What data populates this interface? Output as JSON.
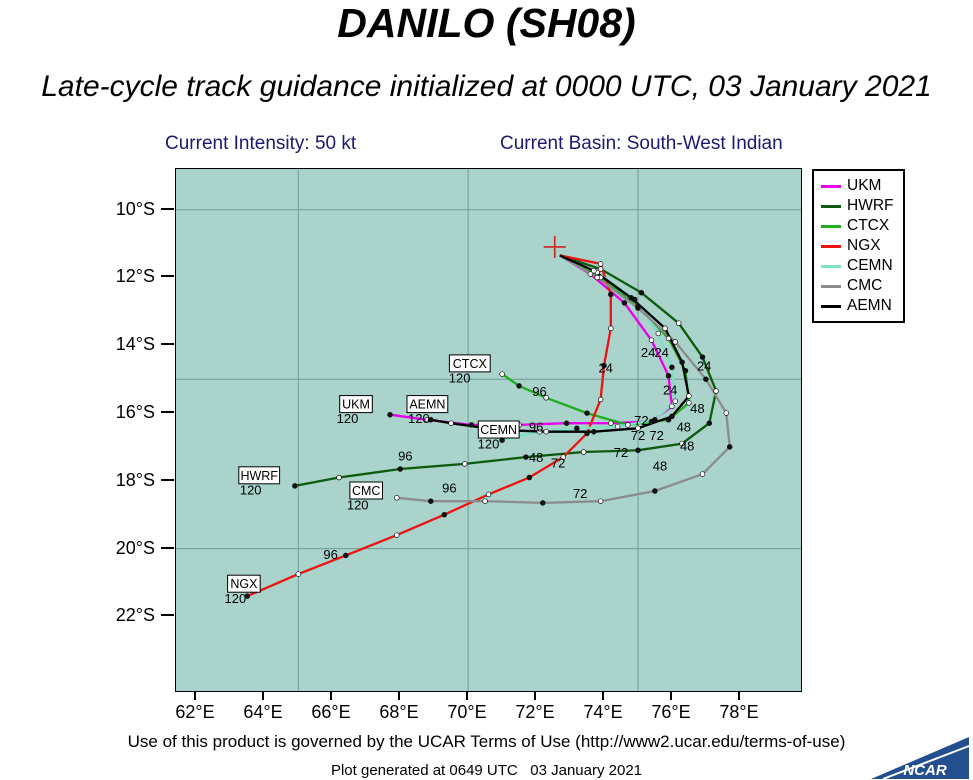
{
  "header": {
    "title": "DANILO (SH08)",
    "subtitle": "Late-cycle track guidance initialized at 0000 UTC, 03 January 2021",
    "intensity_label": "Current Intensity: 50 kt",
    "basin_label": "Current Basin: South-West Indian"
  },
  "footer": {
    "terms": "Use of this product is governed by the UCAR Terms of Use (http://www2.ucar.edu/terms-of-use)",
    "generated": "Plot generated at 0649 UTC   03 January 2021",
    "logo_text": "NCAR"
  },
  "chart_data": {
    "type": "line",
    "title": "DANILO (SH08)",
    "subtitle": "Late-cycle track guidance initialized at 0000 UTC, 03 January 2021",
    "plot_bg": "#a9d3cb",
    "grid_color": "#6e9e97",
    "legend_position": "top-right-outside",
    "x_axis": {
      "min": 61.4,
      "max": 79.8,
      "ticks": [
        {
          "v": 62,
          "label": "62°E"
        },
        {
          "v": 64,
          "label": "64°E"
        },
        {
          "v": 66,
          "label": "66°E"
        },
        {
          "v": 68,
          "label": "68°E"
        },
        {
          "v": 70,
          "label": "70°E"
        },
        {
          "v": 72,
          "label": "72°E"
        },
        {
          "v": 74,
          "label": "74°E"
        },
        {
          "v": 76,
          "label": "76°E"
        },
        {
          "v": 78,
          "label": "78°E"
        }
      ],
      "grid_at": [
        65,
        70,
        75
      ]
    },
    "y_axis": {
      "min": 8.8,
      "max": 24.2,
      "ticks": [
        {
          "v": 10,
          "label": "10°S"
        },
        {
          "v": 12,
          "label": "12°S"
        },
        {
          "v": 14,
          "label": "14°S"
        },
        {
          "v": 16,
          "label": "16°S"
        },
        {
          "v": 18,
          "label": "18°S"
        },
        {
          "v": 20,
          "label": "20°S"
        },
        {
          "v": 22,
          "label": "22°S"
        }
      ],
      "grid_at": [
        10,
        15,
        20
      ]
    },
    "start_marker": {
      "lon": 72.55,
      "lat": 11.1,
      "color": "#cc2222"
    },
    "series": [
      {
        "name": "UKM",
        "color": "#e800e8",
        "points": [
          [
            72.7,
            11.35
          ],
          [
            73.6,
            11.9
          ],
          [
            74.6,
            12.75
          ],
          [
            75.4,
            13.85
          ],
          [
            75.9,
            14.9
          ],
          [
            76.0,
            15.8
          ],
          [
            75.4,
            16.25
          ],
          [
            74.2,
            16.3
          ],
          [
            72.9,
            16.3
          ],
          [
            71.5,
            16.35
          ],
          [
            70.1,
            16.35
          ],
          [
            68.8,
            16.2
          ],
          [
            67.7,
            16.05
          ]
        ]
      },
      {
        "name": "HWRF",
        "color": "#0e5a0e",
        "points": [
          [
            72.7,
            11.35
          ],
          [
            73.9,
            11.75
          ],
          [
            75.1,
            12.45
          ],
          [
            76.2,
            13.35
          ],
          [
            76.9,
            14.35
          ],
          [
            77.3,
            15.35
          ],
          [
            77.1,
            16.3
          ],
          [
            76.3,
            16.9
          ],
          [
            75.0,
            17.1
          ],
          [
            73.4,
            17.15
          ],
          [
            71.7,
            17.3
          ],
          [
            69.9,
            17.5
          ],
          [
            68.0,
            17.65
          ],
          [
            66.2,
            17.9
          ],
          [
            64.9,
            18.15
          ]
        ]
      },
      {
        "name": "CTCX",
        "color": "#1fae1f",
        "points": [
          [
            72.7,
            11.35
          ],
          [
            73.9,
            12.0
          ],
          [
            75.0,
            12.85
          ],
          [
            75.9,
            13.8
          ],
          [
            76.4,
            14.75
          ],
          [
            76.5,
            15.7
          ],
          [
            75.9,
            16.2
          ],
          [
            74.7,
            16.35
          ],
          [
            73.5,
            16.0
          ],
          [
            72.3,
            15.55
          ],
          [
            71.5,
            15.2
          ],
          [
            71.0,
            14.85
          ]
        ]
      },
      {
        "name": "NGX",
        "color": "#ee1111",
        "points": [
          [
            72.7,
            11.35
          ],
          [
            73.9,
            11.6
          ],
          [
            74.2,
            12.5
          ],
          [
            74.2,
            13.5
          ],
          [
            74.0,
            14.6
          ],
          [
            73.9,
            15.6
          ],
          [
            73.5,
            16.6
          ],
          [
            72.8,
            17.3
          ],
          [
            71.8,
            17.9
          ],
          [
            70.6,
            18.4
          ],
          [
            69.3,
            19.0
          ],
          [
            67.9,
            19.6
          ],
          [
            66.4,
            20.2
          ],
          [
            65.0,
            20.75
          ],
          [
            63.5,
            21.4
          ]
        ]
      },
      {
        "name": "CEMN",
        "color": "#7fe0c3",
        "points": [
          [
            72.7,
            11.35
          ],
          [
            73.8,
            11.85
          ],
          [
            74.9,
            12.65
          ],
          [
            75.6,
            13.65
          ],
          [
            76.0,
            14.65
          ],
          [
            76.1,
            15.65
          ],
          [
            75.5,
            16.2
          ],
          [
            74.4,
            16.4
          ],
          [
            73.2,
            16.45
          ],
          [
            72.1,
            16.55
          ],
          [
            71.0,
            16.8
          ]
        ]
      },
      {
        "name": "CMC",
        "color": "#8c8c8c",
        "points": [
          [
            72.7,
            11.35
          ],
          [
            73.8,
            12.0
          ],
          [
            75.0,
            12.9
          ],
          [
            76.1,
            13.9
          ],
          [
            77.0,
            15.0
          ],
          [
            77.6,
            16.0
          ],
          [
            77.7,
            17.0
          ],
          [
            76.9,
            17.8
          ],
          [
            75.5,
            18.3
          ],
          [
            73.9,
            18.6
          ],
          [
            72.2,
            18.65
          ],
          [
            70.5,
            18.6
          ],
          [
            68.9,
            18.6
          ],
          [
            67.9,
            18.5
          ]
        ]
      },
      {
        "name": "AEMN",
        "color": "#000000",
        "points": [
          [
            72.7,
            11.35
          ],
          [
            73.7,
            11.8
          ],
          [
            74.8,
            12.6
          ],
          [
            75.8,
            13.5
          ],
          [
            76.3,
            14.5
          ],
          [
            76.5,
            15.5
          ],
          [
            76.0,
            16.1
          ],
          [
            75.0,
            16.45
          ],
          [
            73.7,
            16.55
          ],
          [
            72.3,
            16.55
          ],
          [
            70.9,
            16.5
          ],
          [
            69.5,
            16.3
          ],
          [
            68.9,
            16.2
          ]
        ]
      }
    ],
    "hour_labels": [
      {
        "t": "24",
        "lon": 74.05,
        "lat": 14.8
      },
      {
        "t": "24",
        "lon": 75.3,
        "lat": 14.35
      },
      {
        "t": "24",
        "lon": 75.7,
        "lat": 14.35
      },
      {
        "t": "24",
        "lon": 76.95,
        "lat": 14.75
      },
      {
        "t": "24",
        "lon": 75.95,
        "lat": 15.45
      },
      {
        "t": "48",
        "lon": 76.75,
        "lat": 16.0
      },
      {
        "t": "48",
        "lon": 76.35,
        "lat": 16.55
      },
      {
        "t": "48",
        "lon": 76.45,
        "lat": 17.1
      },
      {
        "t": "48",
        "lon": 75.65,
        "lat": 17.7
      },
      {
        "t": "48",
        "lon": 72.0,
        "lat": 17.45
      },
      {
        "t": "72",
        "lon": 75.1,
        "lat": 16.35
      },
      {
        "t": "72",
        "lon": 75.0,
        "lat": 16.8
      },
      {
        "t": "72",
        "lon": 75.55,
        "lat": 16.8
      },
      {
        "t": "72",
        "lon": 74.5,
        "lat": 17.3
      },
      {
        "t": "72",
        "lon": 72.65,
        "lat": 17.6
      },
      {
        "t": "72",
        "lon": 73.3,
        "lat": 18.5
      },
      {
        "t": "96",
        "lon": 72.1,
        "lat": 15.5
      },
      {
        "t": "96",
        "lon": 72.0,
        "lat": 16.55
      },
      {
        "t": "96",
        "lon": 68.15,
        "lat": 17.4
      },
      {
        "t": "96",
        "lon": 69.45,
        "lat": 18.35
      },
      {
        "t": "96",
        "lon": 65.95,
        "lat": 20.3
      }
    ],
    "model_boxes": [
      {
        "name": "CTCX",
        "lon": 70.05,
        "lat": 14.55,
        "h": "120",
        "hlon": 69.75,
        "hlat": 15.1
      },
      {
        "name": "UKM",
        "lon": 66.7,
        "lat": 15.75,
        "h": "120",
        "hlon": 66.45,
        "hlat": 16.3
      },
      {
        "name": "AEMN",
        "lon": 68.8,
        "lat": 15.75,
        "h": "120",
        "hlon": 68.55,
        "hlat": 16.3
      },
      {
        "name": "CEMN",
        "lon": 70.9,
        "lat": 16.5,
        "h": "120",
        "hlon": 70.6,
        "hlat": 17.05
      },
      {
        "name": "HWRF",
        "lon": 63.85,
        "lat": 17.85,
        "h": "120",
        "hlon": 63.6,
        "hlat": 18.4
      },
      {
        "name": "CMC",
        "lon": 67.0,
        "lat": 18.3,
        "h": "120",
        "hlon": 66.75,
        "hlat": 18.85
      },
      {
        "name": "NGX",
        "lon": 63.4,
        "lat": 21.05,
        "h": "120",
        "hlon": 63.15,
        "hlat": 21.6
      }
    ]
  }
}
